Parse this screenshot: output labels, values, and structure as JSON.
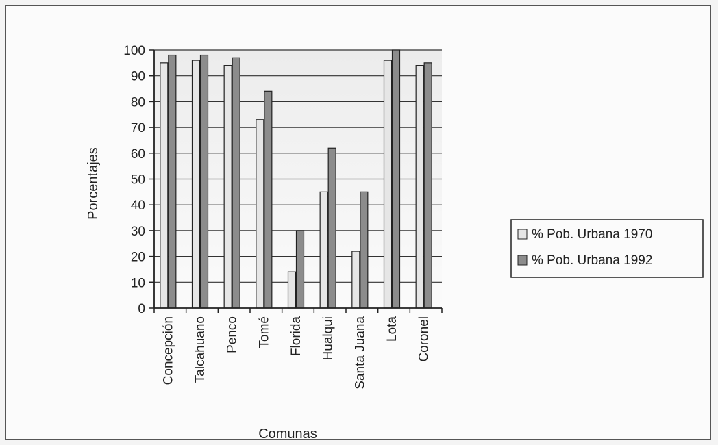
{
  "chart_data": {
    "type": "bar",
    "title": "",
    "xlabel": "Comunas",
    "ylabel": "Porcentajes",
    "ylim": [
      0,
      100
    ],
    "yticks": [
      0,
      10,
      20,
      30,
      40,
      50,
      60,
      70,
      80,
      90,
      100
    ],
    "grid": true,
    "legend_position": "right",
    "categories": [
      "Concepción",
      "Talcahuano",
      "Penco",
      "Tomé",
      "Florida",
      "Hualqui",
      "Santa Juana",
      "Lota",
      "Coronel"
    ],
    "series": [
      {
        "name": "% Pob. Urbana 1970",
        "color": "#e6e6e6",
        "values": [
          95,
          96,
          94,
          73,
          14,
          45,
          22,
          96,
          94
        ]
      },
      {
        "name": "% Pob. Urbana 1992",
        "color": "#8c8c8c",
        "values": [
          98,
          98,
          97,
          84,
          30,
          62,
          45,
          100,
          95
        ]
      }
    ]
  }
}
